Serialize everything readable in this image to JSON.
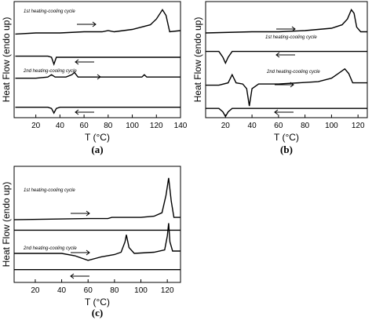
{
  "chart_data": [
    {
      "type": "line",
      "xlabel": "T (°C)",
      "ylabel": "Heat Flow (endo up)",
      "caption": "(a)",
      "annotations": [
        "1st heating-cooling cycle",
        "2nd heating-cooling cycle"
      ],
      "xlim": [
        2,
        140
      ],
      "xticks": [
        20,
        40,
        60,
        80,
        100,
        120,
        140
      ],
      "ylim": [
        0,
        100
      ],
      "series": [
        {
          "color": "#000000",
          "x": [
            3,
            20,
            40,
            60,
            75,
            80,
            85,
            100,
            115,
            120,
            125,
            128,
            131,
            140
          ],
          "values": [
            72,
            73,
            73,
            74,
            74,
            75,
            74,
            76,
            80,
            85,
            93,
            88,
            74,
            75
          ]
        },
        {
          "color": "#000000",
          "x": [
            3,
            30,
            33,
            35,
            37,
            40,
            80,
            140
          ],
          "values": [
            53,
            53,
            52,
            46,
            52,
            52,
            52,
            52
          ]
        },
        {
          "color": "#000000",
          "x": [
            3,
            20,
            30,
            33,
            36,
            45,
            50,
            52,
            55,
            70,
            100,
            108,
            110,
            112,
            140
          ],
          "values": [
            34,
            34,
            35,
            37,
            35,
            35,
            37,
            39,
            35,
            35,
            35,
            35,
            37,
            35,
            35
          ]
        },
        {
          "color": "#000000",
          "x": [
            3,
            30,
            33,
            35,
            37,
            40,
            140
          ],
          "values": [
            9,
            9,
            8,
            4,
            8,
            9,
            9
          ]
        }
      ]
    },
    {
      "type": "line",
      "xlabel": "T (°C)",
      "ylabel": "Heat Flow (endo up)",
      "caption": "(b)",
      "annotations": [
        "1st heating-cooling cycle",
        "2nd heating-cooling cycle"
      ],
      "xlim": [
        5,
        127
      ],
      "xticks": [
        20,
        40,
        60,
        80,
        100,
        120
      ],
      "ylim": [
        0,
        100
      ],
      "series": [
        {
          "color": "#000000",
          "x": [
            5,
            40,
            60,
            80,
            100,
            108,
            112,
            115,
            117,
            119,
            122,
            127
          ],
          "values": [
            73,
            74,
            74,
            75,
            77,
            80,
            85,
            93,
            90,
            78,
            74,
            74
          ]
        },
        {
          "color": "#000000",
          "x": [
            5,
            15,
            18,
            20,
            22,
            25,
            127
          ],
          "values": [
            57,
            57,
            52,
            47,
            52,
            57,
            57
          ]
        },
        {
          "color": "#000000",
          "x": [
            5,
            15,
            22,
            25,
            28,
            33,
            36,
            38,
            40,
            45,
            60,
            90,
            100,
            105,
            110,
            113,
            116,
            127
          ],
          "values": [
            28,
            28,
            30,
            37,
            30,
            29,
            25,
            10,
            25,
            29,
            29,
            31,
            34,
            38,
            42,
            38,
            30,
            30
          ]
        },
        {
          "color": "#000000",
          "x": [
            5,
            15,
            18,
            20,
            22,
            25,
            127
          ],
          "values": [
            8,
            8,
            5,
            1,
            5,
            8,
            8
          ]
        }
      ]
    },
    {
      "type": "line",
      "xlabel": "T (°C)",
      "ylabel": "Heat Flow (endo up)",
      "caption": "(c)",
      "annotations": [
        "1st heating-cooling cycle",
        "2nd heating-cooling cycle"
      ],
      "xlim": [
        4,
        130
      ],
      "xticks": [
        20,
        40,
        60,
        80,
        100,
        120
      ],
      "ylim": [
        0,
        100
      ],
      "series": [
        {
          "color": "#000000",
          "x": [
            4,
            60,
            75,
            78,
            85,
            100,
            110,
            116,
            119,
            121,
            123,
            125,
            130
          ],
          "values": [
            54,
            55,
            55,
            56,
            56,
            56,
            57,
            60,
            75,
            90,
            70,
            56,
            56
          ]
        },
        {
          "color": "#000000",
          "x": [
            4,
            130
          ],
          "values": [
            45,
            45
          ]
        },
        {
          "color": "#000000",
          "x": [
            4,
            40,
            50,
            60,
            70,
            80,
            85,
            88,
            89,
            91,
            95,
            110,
            118,
            120,
            121,
            122,
            124,
            130
          ],
          "values": [
            25,
            25,
            23,
            19,
            22,
            24,
            26,
            35,
            41,
            30,
            25,
            26,
            28,
            40,
            51,
            35,
            27,
            27
          ]
        },
        {
          "color": "#000000",
          "x": [
            4,
            130
          ],
          "values": [
            11,
            11
          ]
        }
      ]
    }
  ]
}
